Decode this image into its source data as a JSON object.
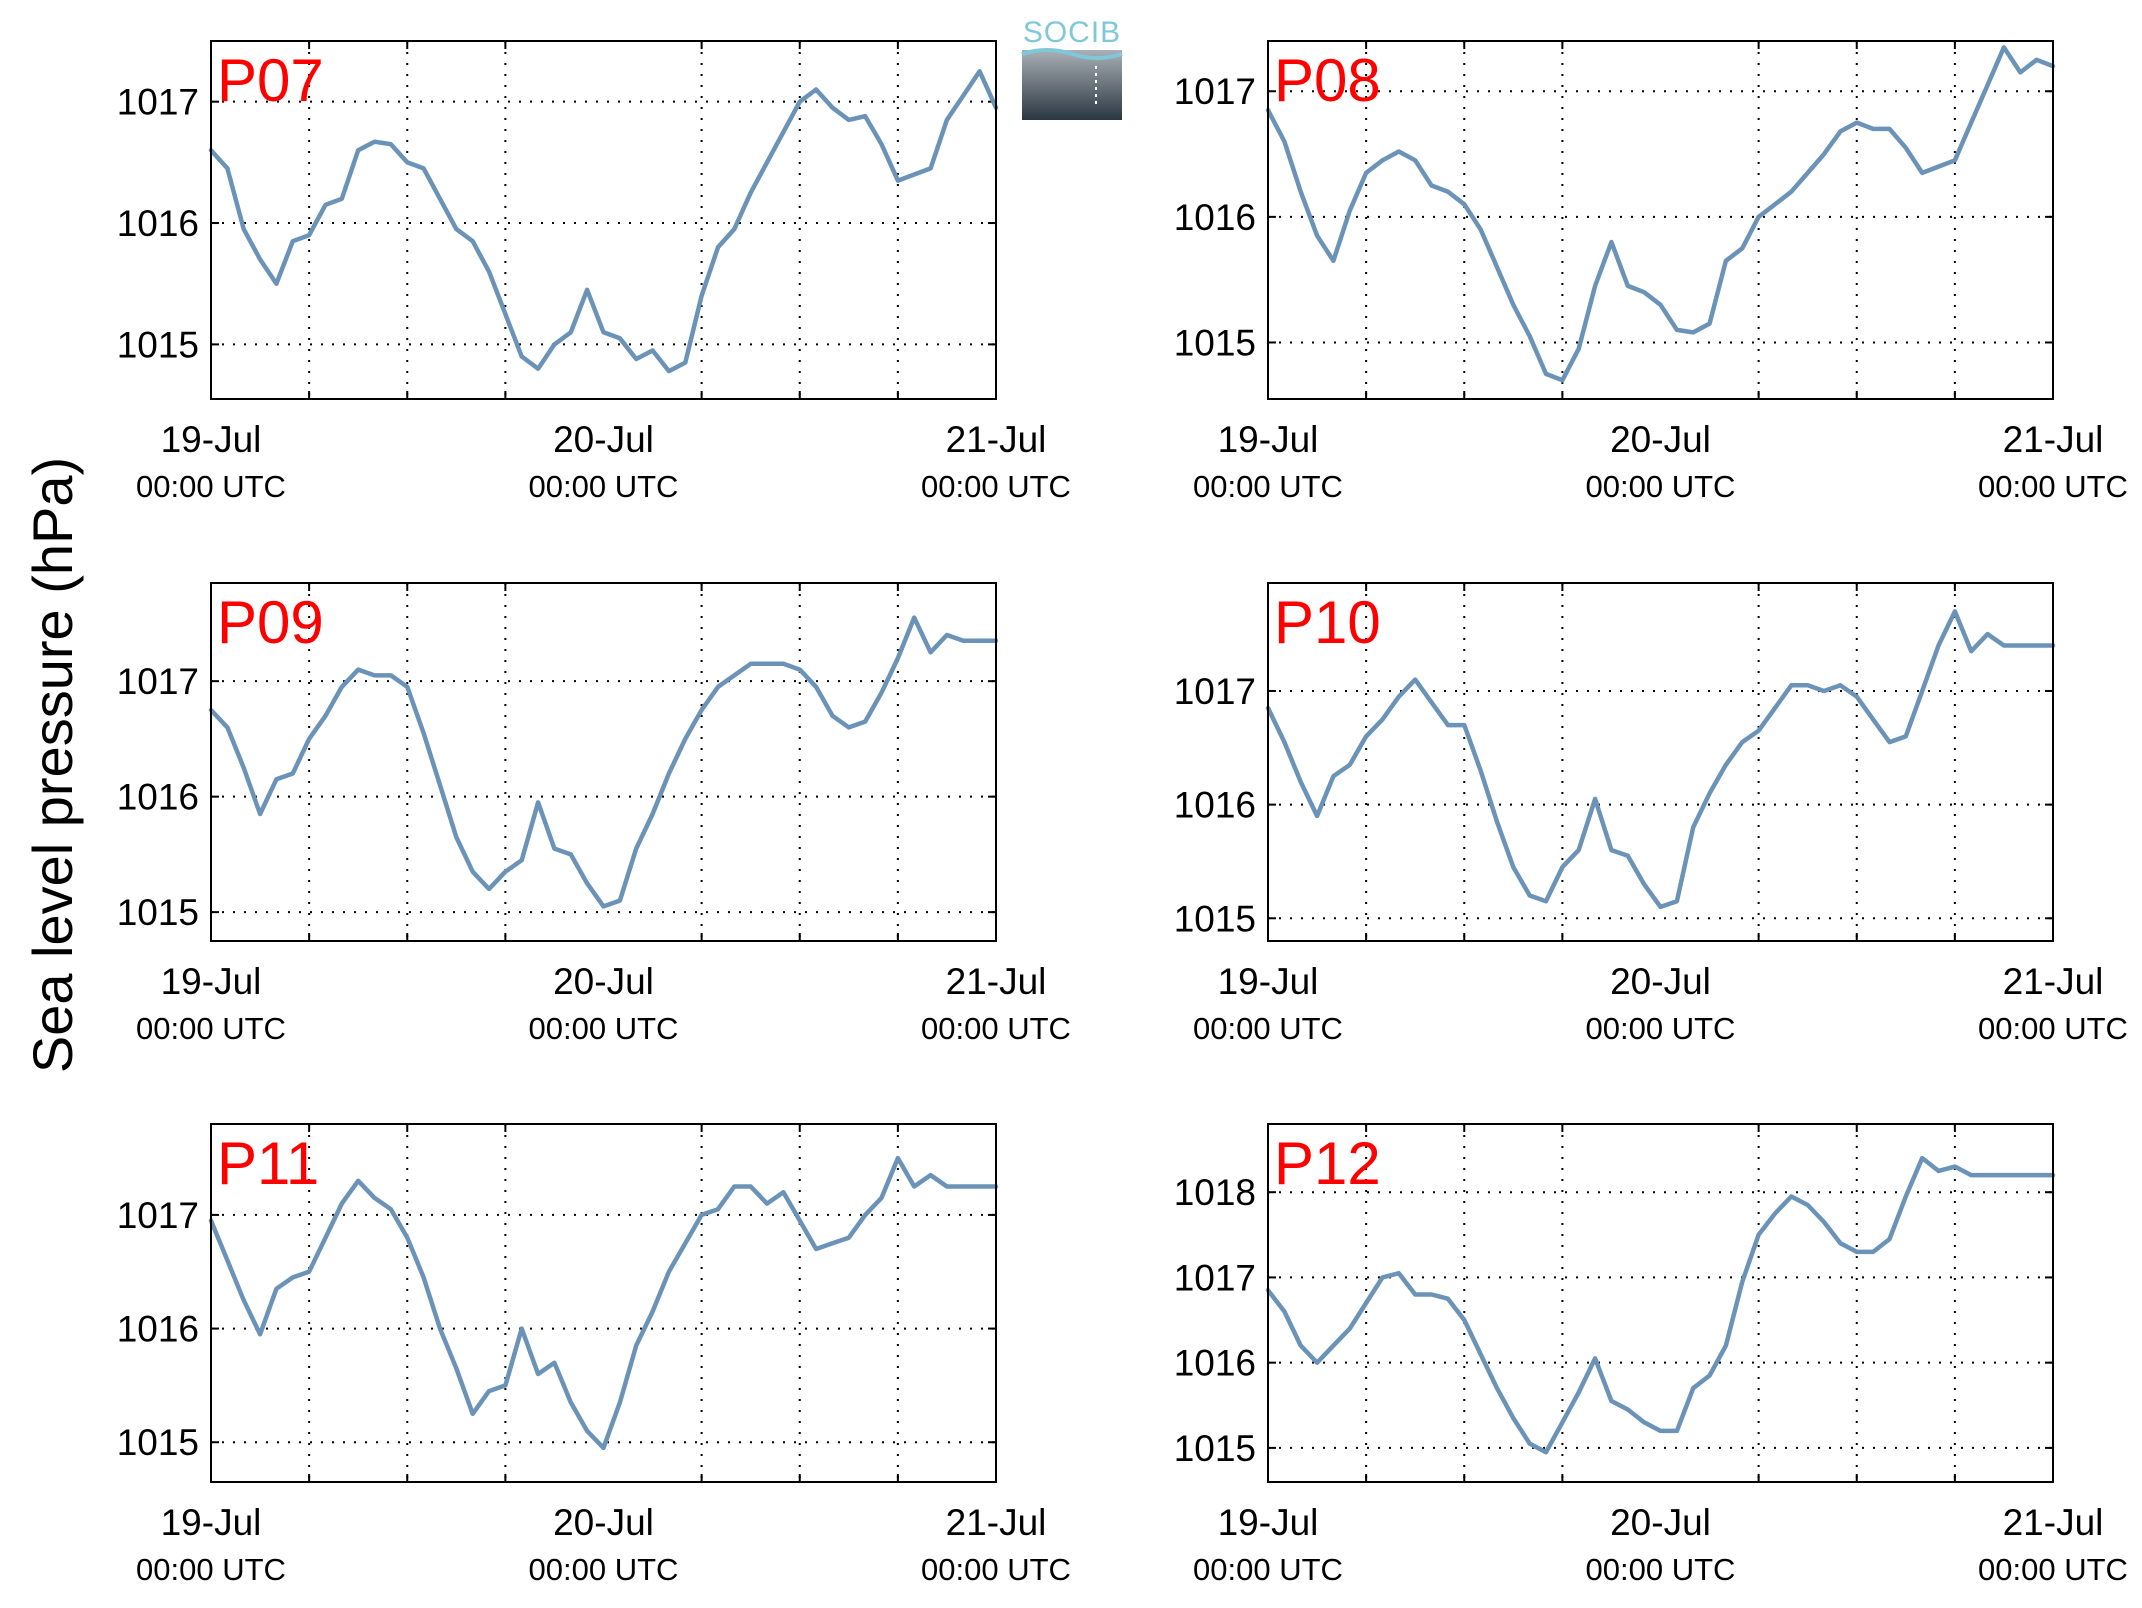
{
  "ylabel": "Sea level pressure (hPa)",
  "logo": {
    "text": "SOCIB"
  },
  "colors": {
    "series": "#6b93b8",
    "panel_label": "#ff0000",
    "logo_text": "#7ec8d8",
    "logo_top": "#a9b0b6",
    "logo_bottom": "#2a3640"
  },
  "xaxis": {
    "range": [
      "19-Jul 00:00 UTC",
      "21-Jul 00:00 UTC"
    ],
    "ticks": [
      {
        "date": "19-Jul",
        "time": "00:00 UTC"
      },
      {
        "date": "20-Jul",
        "time": "00:00 UTC"
      },
      {
        "date": "21-Jul",
        "time": "00:00 UTC"
      }
    ],
    "minor_grid_hours": [
      6,
      12,
      18,
      30,
      36,
      42
    ]
  },
  "chart_data": [
    {
      "type": "line",
      "label": "P07",
      "x_unit": "hours since 19-Jul 00:00 UTC",
      "ylim": [
        1014.55,
        1017.5
      ],
      "yticks": [
        "1015",
        "1016",
        "1017"
      ],
      "grid": true,
      "x": [
        0,
        1,
        2,
        3,
        4,
        5,
        6,
        7,
        8,
        9,
        10,
        11,
        12,
        13,
        14,
        15,
        16,
        17,
        18,
        19,
        20,
        21,
        22,
        23,
        24,
        25,
        26,
        27,
        28,
        29,
        30,
        31,
        32,
        33,
        34,
        35,
        36,
        37,
        38,
        39,
        40,
        41,
        42,
        43,
        44,
        45,
        46,
        47,
        48
      ],
      "y": [
        1016.6,
        1016.45,
        1015.95,
        1015.7,
        1015.5,
        1015.85,
        1015.9,
        1016.15,
        1016.2,
        1016.6,
        1016.67,
        1016.65,
        1016.5,
        1016.45,
        1016.2,
        1015.95,
        1015.85,
        1015.6,
        1015.25,
        1014.9,
        1014.8,
        1015.0,
        1015.1,
        1015.45,
        1015.1,
        1015.05,
        1014.88,
        1014.95,
        1014.78,
        1014.85,
        1015.4,
        1015.8,
        1015.95,
        1016.25,
        1016.5,
        1016.75,
        1017.0,
        1017.1,
        1016.95,
        1016.85,
        1016.88,
        1016.65,
        1016.35,
        1016.4,
        1016.45,
        1016.85,
        1017.05,
        1017.25,
        1016.95
      ]
    },
    {
      "type": "line",
      "label": "P08",
      "x_unit": "hours since 19-Jul 00:00 UTC",
      "ylim": [
        1014.55,
        1017.4
      ],
      "yticks": [
        "1015",
        "1016",
        "1017"
      ],
      "grid": true,
      "x": [
        0,
        1,
        2,
        3,
        4,
        5,
        6,
        7,
        8,
        9,
        10,
        11,
        12,
        13,
        14,
        15,
        16,
        17,
        18,
        19,
        20,
        21,
        22,
        23,
        24,
        25,
        26,
        27,
        28,
        29,
        30,
        31,
        32,
        33,
        34,
        35,
        36,
        37,
        38,
        39,
        40,
        41,
        42,
        43,
        44,
        45,
        46,
        47,
        48
      ],
      "y": [
        1016.85,
        1016.6,
        1016.2,
        1015.85,
        1015.65,
        1016.05,
        1016.35,
        1016.45,
        1016.52,
        1016.45,
        1016.25,
        1016.2,
        1016.1,
        1015.9,
        1015.6,
        1015.3,
        1015.05,
        1014.75,
        1014.7,
        1014.95,
        1015.45,
        1015.8,
        1015.45,
        1015.4,
        1015.3,
        1015.1,
        1015.08,
        1015.15,
        1015.65,
        1015.75,
        1016.0,
        1016.1,
        1016.2,
        1016.35,
        1016.5,
        1016.68,
        1016.75,
        1016.7,
        1016.7,
        1016.55,
        1016.35,
        1016.4,
        1016.45,
        1016.75,
        1017.05,
        1017.35,
        1017.15,
        1017.25,
        1017.2
      ]
    },
    {
      "type": "line",
      "label": "P09",
      "x_unit": "hours since 19-Jul 00:00 UTC",
      "ylim": [
        1014.75,
        1017.85
      ],
      "yticks": [
        "1015",
        "1016",
        "1017"
      ],
      "grid": true,
      "x": [
        0,
        1,
        2,
        3,
        4,
        5,
        6,
        7,
        8,
        9,
        10,
        11,
        12,
        13,
        14,
        15,
        16,
        17,
        18,
        19,
        20,
        21,
        22,
        23,
        24,
        25,
        26,
        27,
        28,
        29,
        30,
        31,
        32,
        33,
        34,
        35,
        36,
        37,
        38,
        39,
        40,
        41,
        42,
        43,
        44,
        45,
        46,
        47,
        48
      ],
      "y": [
        1016.75,
        1016.6,
        1016.25,
        1015.85,
        1016.15,
        1016.2,
        1016.5,
        1016.7,
        1016.95,
        1017.1,
        1017.05,
        1017.05,
        1016.95,
        1016.55,
        1016.1,
        1015.65,
        1015.35,
        1015.2,
        1015.35,
        1015.45,
        1015.95,
        1015.55,
        1015.5,
        1015.25,
        1015.05,
        1015.1,
        1015.55,
        1015.85,
        1016.2,
        1016.5,
        1016.75,
        1016.95,
        1017.05,
        1017.15,
        1017.15,
        1017.15,
        1017.1,
        1016.95,
        1016.7,
        1016.6,
        1016.65,
        1016.9,
        1017.2,
        1017.55,
        1017.25,
        1017.4,
        1017.35,
        1017.35,
        1017.35
      ]
    },
    {
      "type": "line",
      "label": "P10",
      "x_unit": "hours since 19-Jul 00:00 UTC",
      "ylim": [
        1014.8,
        1017.95
      ],
      "yticks": [
        "1015",
        "1016",
        "1017"
      ],
      "grid": true,
      "x": [
        0,
        1,
        2,
        3,
        4,
        5,
        6,
        7,
        8,
        9,
        10,
        11,
        12,
        13,
        14,
        15,
        16,
        17,
        18,
        19,
        20,
        21,
        22,
        23,
        24,
        25,
        26,
        27,
        28,
        29,
        30,
        31,
        32,
        33,
        34,
        35,
        36,
        37,
        38,
        39,
        40,
        41,
        42,
        43,
        44,
        45,
        46,
        47,
        48
      ],
      "y": [
        1016.85,
        1016.55,
        1016.2,
        1015.9,
        1016.25,
        1016.35,
        1016.6,
        1016.75,
        1016.95,
        1017.1,
        1016.9,
        1016.7,
        1016.7,
        1016.3,
        1015.85,
        1015.45,
        1015.2,
        1015.15,
        1015.45,
        1015.6,
        1016.05,
        1015.6,
        1015.55,
        1015.3,
        1015.1,
        1015.15,
        1015.8,
        1016.1,
        1016.35,
        1016.55,
        1016.65,
        1016.85,
        1017.05,
        1017.05,
        1017.0,
        1017.05,
        1016.95,
        1016.75,
        1016.55,
        1016.6,
        1017.0,
        1017.4,
        1017.7,
        1017.35,
        1017.5,
        1017.4,
        1017.4,
        1017.4,
        1017.4
      ]
    },
    {
      "type": "line",
      "label": "P11",
      "x_unit": "hours since 19-Jul 00:00 UTC",
      "ylim": [
        1014.65,
        1017.8
      ],
      "yticks": [
        "1015",
        "1016",
        "1017"
      ],
      "grid": true,
      "x": [
        0,
        1,
        2,
        3,
        4,
        5,
        6,
        7,
        8,
        9,
        10,
        11,
        12,
        13,
        14,
        15,
        16,
        17,
        18,
        19,
        20,
        21,
        22,
        23,
        24,
        25,
        26,
        27,
        28,
        29,
        30,
        31,
        32,
        33,
        34,
        35,
        36,
        37,
        38,
        39,
        40,
        41,
        42,
        43,
        44,
        45,
        46,
        47,
        48
      ],
      "y": [
        1016.95,
        1016.6,
        1016.25,
        1015.95,
        1016.35,
        1016.45,
        1016.5,
        1016.8,
        1017.1,
        1017.3,
        1017.15,
        1017.05,
        1016.8,
        1016.45,
        1016.0,
        1015.65,
        1015.25,
        1015.45,
        1015.5,
        1016.0,
        1015.6,
        1015.7,
        1015.35,
        1015.1,
        1014.95,
        1015.35,
        1015.85,
        1016.15,
        1016.5,
        1016.75,
        1017.0,
        1017.05,
        1017.25,
        1017.25,
        1017.1,
        1017.2,
        1016.95,
        1016.7,
        1016.75,
        1016.8,
        1017.0,
        1017.15,
        1017.5,
        1017.25,
        1017.35,
        1017.25,
        1017.25,
        1017.25,
        1017.25
      ]
    },
    {
      "type": "line",
      "label": "P12",
      "x_unit": "hours since 19-Jul 00:00 UTC",
      "ylim": [
        1014.6,
        1018.8
      ],
      "yticks": [
        "1015",
        "1016",
        "1017",
        "1018"
      ],
      "grid": true,
      "x": [
        0,
        1,
        2,
        3,
        4,
        5,
        6,
        7,
        8,
        9,
        10,
        11,
        12,
        13,
        14,
        15,
        16,
        17,
        18,
        19,
        20,
        21,
        22,
        23,
        24,
        25,
        26,
        27,
        28,
        29,
        30,
        31,
        32,
        33,
        34,
        35,
        36,
        37,
        38,
        39,
        40,
        41,
        42,
        43,
        44,
        45,
        46,
        47,
        48
      ],
      "y": [
        1016.85,
        1016.6,
        1016.2,
        1016.0,
        1016.2,
        1016.4,
        1016.7,
        1017.0,
        1017.05,
        1016.8,
        1016.8,
        1016.75,
        1016.5,
        1016.1,
        1015.7,
        1015.35,
        1015.05,
        1014.95,
        1015.3,
        1015.65,
        1016.05,
        1015.55,
        1015.45,
        1015.3,
        1015.2,
        1015.2,
        1015.7,
        1015.85,
        1016.2,
        1016.95,
        1017.5,
        1017.75,
        1017.95,
        1017.85,
        1017.65,
        1017.4,
        1017.3,
        1017.3,
        1017.45,
        1017.95,
        1018.4,
        1018.25,
        1018.3,
        1018.2,
        1018.2,
        1018.2,
        1018.2,
        1018.2,
        1018.2
      ]
    }
  ]
}
